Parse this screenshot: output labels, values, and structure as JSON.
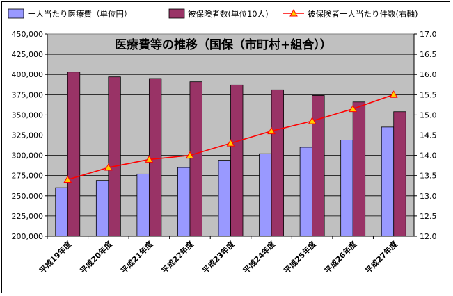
{
  "chart_data": {
    "type": "bar",
    "title": "医療費等の推移（国保（市町村+組合））",
    "categories": [
      "平成19年度",
      "平成20年度",
      "平成21年度",
      "平成22年度",
      "平成23年度",
      "平成24年度",
      "平成25年度",
      "平成26年度",
      "平成27年度"
    ],
    "series": [
      {
        "name": "一人当たり医療費（単位円）",
        "type": "bar",
        "axis": "left",
        "color": "#9999ff",
        "values": [
          260000,
          269000,
          277000,
          285000,
          294000,
          302000,
          310000,
          319000,
          335000
        ]
      },
      {
        "name": "被保険者数(単位10人)",
        "type": "bar",
        "axis": "left",
        "color": "#993366",
        "values": [
          403000,
          397000,
          395000,
          391000,
          387000,
          381000,
          374000,
          366000,
          354000
        ]
      },
      {
        "name": "被保険者一人当たり件数(右軸)",
        "type": "line",
        "axis": "right",
        "color": "#ff0000",
        "marker_color": "#ffcc00",
        "values": [
          13.4,
          13.7,
          13.9,
          14.0,
          14.3,
          14.6,
          14.85,
          15.15,
          15.5
        ]
      }
    ],
    "ylim": [
      200000,
      450000
    ],
    "yticks": [
      "200,000",
      "225,000",
      "250,000",
      "275,000",
      "300,000",
      "325,000",
      "350,000",
      "375,000",
      "400,000",
      "425,000",
      "450,000"
    ],
    "y2lim": [
      12.0,
      17.0
    ],
    "y2ticks": [
      "12.0",
      "12.5",
      "13.0",
      "13.5",
      "14.0",
      "14.5",
      "15.0",
      "15.5",
      "16.0",
      "16.5",
      "17.0"
    ],
    "plot_background": "#c0c0c0",
    "grid": true,
    "legend_position": "top"
  }
}
